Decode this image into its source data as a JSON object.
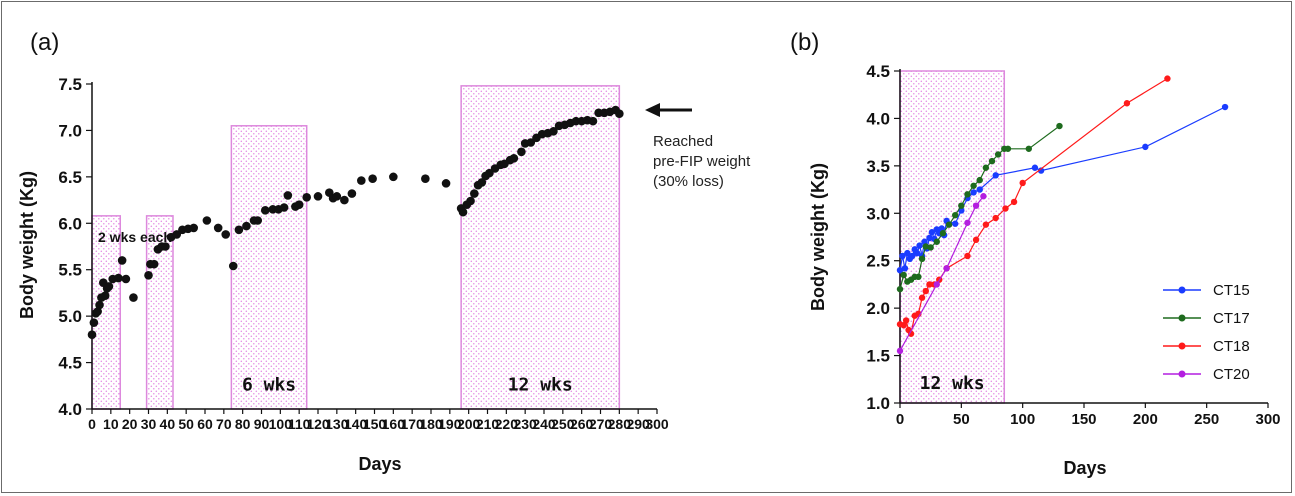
{
  "chart_data": [
    {
      "type": "scatter",
      "panel_label": "(a)",
      "xlabel": "Days",
      "ylabel": "Body weight (Kg)",
      "xlim": [
        0,
        300
      ],
      "ylim": [
        4.0,
        7.5
      ],
      "xticks": [
        "0",
        "10",
        "20",
        "30",
        "40",
        "50",
        "60",
        "70",
        "80",
        "90",
        "100",
        "110",
        "120",
        "130",
        "140",
        "150",
        "160",
        "170",
        "180",
        "190",
        "200",
        "210",
        "220",
        "230",
        "240",
        "250",
        "260",
        "270",
        "280",
        "290",
        "300"
      ],
      "yticks": [
        "4.0",
        "4.5",
        "5.0",
        "5.5",
        "6.0",
        "6.5",
        "7.0",
        "7.5"
      ],
      "treatment_periods": [
        {
          "x0": 0,
          "x1": 15,
          "y_top": 6.08,
          "label": "2 wks each"
        },
        {
          "x0": 29,
          "x1": 43,
          "y_top": 6.08,
          "label": ""
        },
        {
          "x0": 74,
          "x1": 114,
          "y_top": 7.05,
          "label": "6 wks"
        },
        {
          "x0": 196,
          "x1": 280,
          "y_top": 7.48,
          "label": "12 wks"
        }
      ],
      "annotation": {
        "lines": [
          "Reached",
          "pre-FIP weight",
          "(30% loss)"
        ],
        "points_to": [
          280,
          7.21
        ]
      },
      "points": [
        [
          0,
          4.8
        ],
        [
          1,
          4.93
        ],
        [
          2,
          5.03
        ],
        [
          3,
          5.05
        ],
        [
          4,
          5.12
        ],
        [
          5,
          5.2
        ],
        [
          6,
          5.36
        ],
        [
          7,
          5.22
        ],
        [
          8,
          5.3
        ],
        [
          9,
          5.32
        ],
        [
          11,
          5.4
        ],
        [
          14,
          5.41
        ],
        [
          16,
          5.6
        ],
        [
          18,
          5.4
        ],
        [
          22,
          5.2
        ],
        [
          30,
          5.44
        ],
        [
          31,
          5.56
        ],
        [
          33,
          5.56
        ],
        [
          35,
          5.72
        ],
        [
          37,
          5.75
        ],
        [
          39,
          5.75
        ],
        [
          42,
          5.85
        ],
        [
          45,
          5.88
        ],
        [
          48,
          5.93
        ],
        [
          51,
          5.94
        ],
        [
          54,
          5.95
        ],
        [
          61,
          6.03
        ],
        [
          67,
          5.95
        ],
        [
          71,
          5.88
        ],
        [
          75,
          5.54
        ],
        [
          78,
          5.93
        ],
        [
          82,
          5.97
        ],
        [
          86,
          6.03
        ],
        [
          88,
          6.03
        ],
        [
          92,
          6.14
        ],
        [
          96,
          6.15
        ],
        [
          99,
          6.15
        ],
        [
          102,
          6.17
        ],
        [
          104,
          6.3
        ],
        [
          108,
          6.18
        ],
        [
          110,
          6.2
        ],
        [
          114,
          6.28
        ],
        [
          120,
          6.29
        ],
        [
          126,
          6.33
        ],
        [
          128,
          6.27
        ],
        [
          130,
          6.29
        ],
        [
          134,
          6.25
        ],
        [
          138,
          6.32
        ],
        [
          143,
          6.46
        ],
        [
          149,
          6.48
        ],
        [
          160,
          6.5
        ],
        [
          177,
          6.48
        ],
        [
          188,
          6.43
        ],
        [
          196,
          6.16
        ],
        [
          197,
          6.12
        ],
        [
          199,
          6.2
        ],
        [
          201,
          6.24
        ],
        [
          203,
          6.32
        ],
        [
          205,
          6.41
        ],
        [
          207,
          6.44
        ],
        [
          209,
          6.51
        ],
        [
          211,
          6.54
        ],
        [
          214,
          6.59
        ],
        [
          217,
          6.63
        ],
        [
          219,
          6.64
        ],
        [
          222,
          6.68
        ],
        [
          224,
          6.7
        ],
        [
          228,
          6.77
        ],
        [
          230,
          6.86
        ],
        [
          233,
          6.87
        ],
        [
          236,
          6.92
        ],
        [
          239,
          6.96
        ],
        [
          242,
          6.97
        ],
        [
          245,
          6.99
        ],
        [
          248,
          7.05
        ],
        [
          251,
          7.06
        ],
        [
          254,
          7.08
        ],
        [
          257,
          7.1
        ],
        [
          260,
          7.1
        ],
        [
          263,
          7.11
        ],
        [
          266,
          7.1
        ],
        [
          269,
          7.19
        ],
        [
          272,
          7.19
        ],
        [
          275,
          7.2
        ],
        [
          278,
          7.22
        ],
        [
          280,
          7.18
        ]
      ]
    },
    {
      "type": "line",
      "panel_label": "(b)",
      "xlabel": "Days",
      "ylabel": "Body weight (Kg)",
      "xlim": [
        0,
        300
      ],
      "ylim": [
        1.0,
        4.5
      ],
      "xticks": [
        "0",
        "50",
        "100",
        "150",
        "200",
        "250",
        "300"
      ],
      "yticks": [
        "1.0",
        "1.5",
        "2.0",
        "2.5",
        "3.0",
        "3.5",
        "4.0",
        "4.5"
      ],
      "treatment_period": {
        "x0": 0,
        "x1": 85,
        "y_top": 4.5,
        "label": "12 wks"
      },
      "legend_position": "right",
      "series": [
        {
          "name": "CT15",
          "color": "#1a3cff",
          "points": [
            [
              0,
              2.4
            ],
            [
              2,
              2.55
            ],
            [
              4,
              2.42
            ],
            [
              6,
              2.58
            ],
            [
              8,
              2.52
            ],
            [
              10,
              2.55
            ],
            [
              12,
              2.62
            ],
            [
              14,
              2.58
            ],
            [
              16,
              2.66
            ],
            [
              18,
              2.55
            ],
            [
              20,
              2.7
            ],
            [
              22,
              2.63
            ],
            [
              24,
              2.74
            ],
            [
              26,
              2.8
            ],
            [
              28,
              2.73
            ],
            [
              30,
              2.83
            ],
            [
              32,
              2.79
            ],
            [
              34,
              2.84
            ],
            [
              36,
              2.77
            ],
            [
              38,
              2.92
            ],
            [
              45,
              2.89
            ],
            [
              50,
              3.03
            ],
            [
              55,
              3.16
            ],
            [
              60,
              3.22
            ],
            [
              65,
              3.25
            ],
            [
              78,
              3.4
            ],
            [
              110,
              3.48
            ],
            [
              115,
              3.45
            ],
            [
              200,
              3.7
            ],
            [
              265,
              4.12
            ]
          ]
        },
        {
          "name": "CT17",
          "color": "#1e6b1e",
          "points": [
            [
              0,
              2.2
            ],
            [
              3,
              2.35
            ],
            [
              6,
              2.28
            ],
            [
              9,
              2.3
            ],
            [
              12,
              2.33
            ],
            [
              15,
              2.33
            ],
            [
              18,
              2.52
            ],
            [
              21,
              2.65
            ],
            [
              25,
              2.64
            ],
            [
              30,
              2.7
            ],
            [
              35,
              2.79
            ],
            [
              40,
              2.88
            ],
            [
              45,
              2.98
            ],
            [
              50,
              3.08
            ],
            [
              55,
              3.2
            ],
            [
              60,
              3.29
            ],
            [
              65,
              3.35
            ],
            [
              70,
              3.48
            ],
            [
              75,
              3.55
            ],
            [
              80,
              3.62
            ],
            [
              85,
              3.68
            ],
            [
              88,
              3.68
            ],
            [
              105,
              3.68
            ],
            [
              130,
              3.92
            ]
          ]
        },
        {
          "name": "CT18",
          "color": "#ff1a1a",
          "points": [
            [
              0,
              1.83
            ],
            [
              3,
              1.82
            ],
            [
              5,
              1.87
            ],
            [
              7,
              1.77
            ],
            [
              9,
              1.73
            ],
            [
              12,
              1.92
            ],
            [
              15,
              1.94
            ],
            [
              18,
              2.11
            ],
            [
              21,
              2.18
            ],
            [
              24,
              2.25
            ],
            [
              28,
              2.25
            ],
            [
              32,
              2.3
            ],
            [
              38,
              2.42
            ],
            [
              55,
              2.55
            ],
            [
              62,
              2.72
            ],
            [
              70,
              2.88
            ],
            [
              78,
              2.95
            ],
            [
              86,
              3.05
            ],
            [
              93,
              3.12
            ],
            [
              100,
              3.32
            ],
            [
              185,
              4.16
            ],
            [
              218,
              4.42
            ]
          ]
        },
        {
          "name": "CT20",
          "color": "#b41ee0",
          "points": [
            [
              0,
              1.55
            ],
            [
              30,
              2.25
            ],
            [
              38,
              2.42
            ],
            [
              55,
              2.9
            ],
            [
              62,
              3.08
            ],
            [
              68,
              3.18
            ]
          ]
        }
      ]
    }
  ]
}
